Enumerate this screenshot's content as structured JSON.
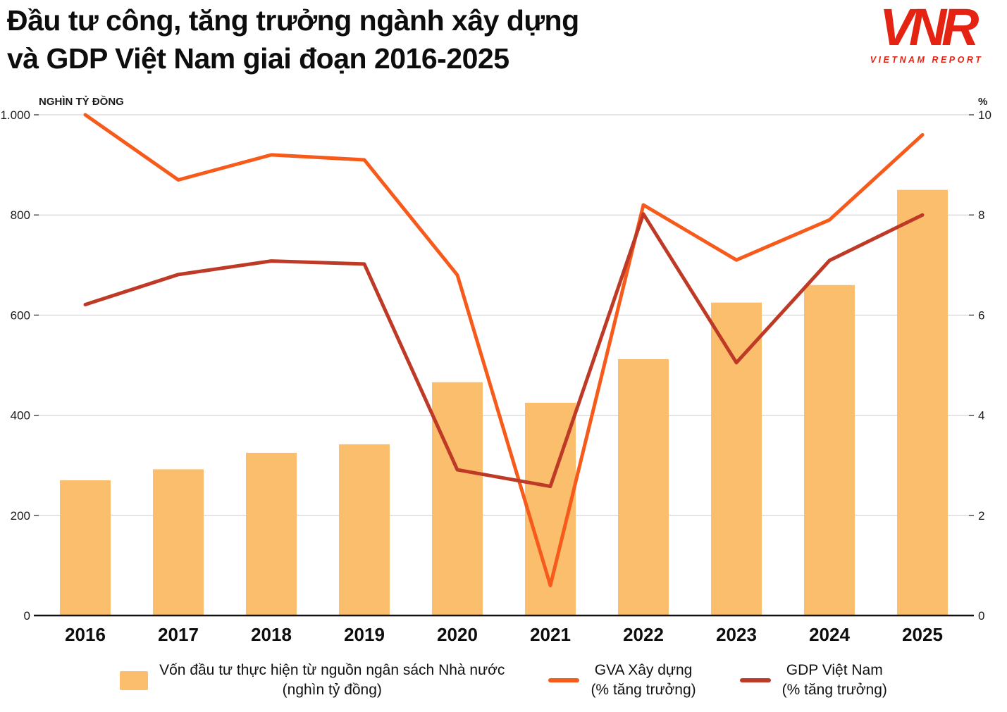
{
  "header": {
    "title_line1": "Đầu tư công, tăng trưởng ngành xây dựng",
    "title_line2": "và GDP Việt Nam giai đoạn 2016-2025",
    "logo": {
      "text": "VNR",
      "subtext": "VIETNAM REPORT",
      "color": "#E42313"
    }
  },
  "chart_data": {
    "type": "bar",
    "title": "Đầu tư công, tăng trưởng ngành xây dựng và GDP Việt Nam giai đoạn 2016-2025",
    "categories": [
      "2016",
      "2017",
      "2018",
      "2019",
      "2020",
      "2021",
      "2022",
      "2023",
      "2024",
      "2025"
    ],
    "left_axis": {
      "label": "NGHÌN TỶ ĐỒNG",
      "min": 0,
      "max": 1000,
      "ticks": [
        "0",
        "200",
        "400",
        "600",
        "800",
        "1.000"
      ]
    },
    "right_axis": {
      "label": "%",
      "min": 0,
      "max": 10,
      "ticks": [
        "0",
        "2",
        "4",
        "6",
        "8",
        "10"
      ]
    },
    "grid": true,
    "legend_position": "bottom",
    "series": [
      {
        "name": "Vốn đầu tư thực hiện từ nguồn ngân sách Nhà nước (nghìn tỷ đồng)",
        "type": "bar",
        "axis": "left",
        "color": "#FBBE6D",
        "values": [
          270,
          292,
          325,
          342,
          466,
          425,
          512,
          625,
          660,
          850
        ]
      },
      {
        "name": "GVA Xây dựng (% tăng trưởng)",
        "type": "line",
        "axis": "right",
        "color": "#F75B1C",
        "values": [
          10.0,
          8.7,
          9.2,
          9.1,
          6.8,
          0.6,
          8.2,
          7.1,
          7.9,
          9.6
        ]
      },
      {
        "name": "GDP Việt Nam (% tăng trưởng)",
        "type": "line",
        "axis": "right",
        "color": "#BF3A26",
        "values": [
          6.21,
          6.81,
          7.08,
          7.02,
          2.91,
          2.58,
          8.02,
          5.05,
          7.09,
          8.0
        ]
      }
    ]
  },
  "legend": {
    "items": [
      {
        "swatch": "bar",
        "color": "#FBBE6D",
        "label_line1": "Vốn đầu tư thực hiện từ nguồn ngân sách Nhà nước",
        "label_line2": "(nghìn tỷ đồng)"
      },
      {
        "swatch": "line",
        "color": "#F75B1C",
        "label_line1": "GVA Xây dựng",
        "label_line2": "(% tăng trưởng)"
      },
      {
        "swatch": "line",
        "color": "#BF3A26",
        "label_line1": "GDP Việt Nam",
        "label_line2": "(% tăng trưởng)"
      }
    ]
  }
}
